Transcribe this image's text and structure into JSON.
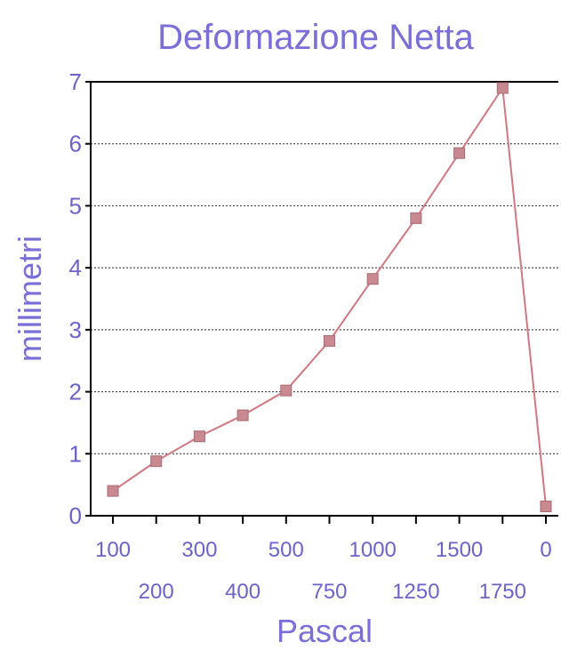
{
  "chart_data": {
    "type": "line",
    "title": "Deformazione Netta",
    "xlabel": "Pascal",
    "ylabel": "millimetri",
    "ylim": [
      0,
      7
    ],
    "yticks": [
      0,
      1,
      2,
      3,
      4,
      5,
      6,
      7
    ],
    "grid": true,
    "categories": [
      "100",
      "200",
      "300",
      "400",
      "500",
      "750",
      "1000",
      "1250",
      "1500",
      "1750",
      "0"
    ],
    "series": [
      {
        "values": [
          0.4,
          0.88,
          1.28,
          1.62,
          2.02,
          2.82,
          3.82,
          4.8,
          5.85,
          6.9,
          0.15
        ]
      }
    ],
    "colors": {
      "title": "#7a6fd6",
      "labels": "#6b63c7",
      "line": "#d07882",
      "marker": "#c88a90"
    }
  }
}
